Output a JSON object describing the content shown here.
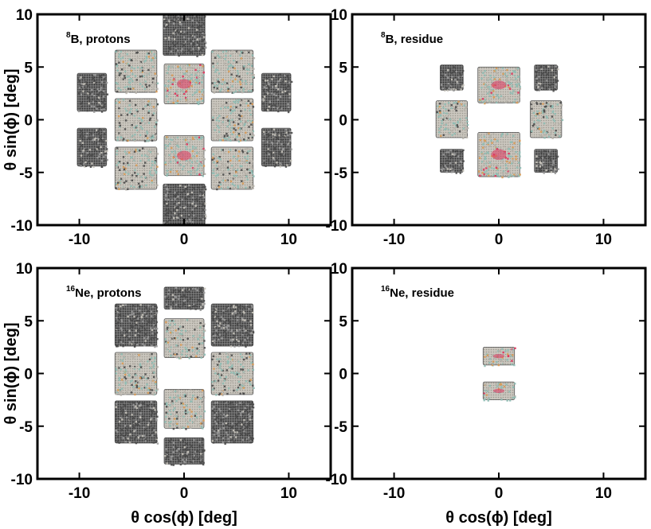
{
  "chart_data": [
    {
      "type": "heatmap",
      "panel": "top-left",
      "title_sup": "8",
      "title": "B, protons",
      "xlabel": "",
      "ylabel": "θ sin(ϕ) [deg]",
      "xlim": [
        -14,
        14
      ],
      "ylim": [
        -10,
        10
      ],
      "xticks": [
        -10,
        0,
        10
      ],
      "yticks": [
        -10,
        -5,
        0,
        5,
        10
      ],
      "xtick_labels": [
        "-10",
        "0",
        "10"
      ],
      "ytick_labels": [
        "-10",
        "-5",
        "0",
        "5",
        "10"
      ],
      "regions": [
        {
          "x": [
            -2.0,
            2.0
          ],
          "y": [
            6.1,
            10.0
          ],
          "intensity": "edge"
        },
        {
          "x": [
            -6.6,
            -2.6
          ],
          "y": [
            2.6,
            6.6
          ],
          "intensity": "mixed"
        },
        {
          "x": [
            -1.9,
            1.9
          ],
          "y": [
            1.5,
            5.3
          ],
          "intensity": "high"
        },
        {
          "x": [
            2.6,
            6.6
          ],
          "y": [
            2.6,
            6.6
          ],
          "intensity": "mixed"
        },
        {
          "x": [
            -10.2,
            -7.4
          ],
          "y": [
            0.8,
            4.4
          ],
          "intensity": "edge"
        },
        {
          "x": [
            -6.6,
            -2.6
          ],
          "y": [
            -2.0,
            2.0
          ],
          "intensity": "mixed"
        },
        {
          "x": [
            2.6,
            6.6
          ],
          "y": [
            -2.0,
            2.0
          ],
          "intensity": "mixed"
        },
        {
          "x": [
            7.4,
            10.2
          ],
          "y": [
            0.8,
            4.4
          ],
          "intensity": "edge"
        },
        {
          "x": [
            -10.2,
            -7.4
          ],
          "y": [
            -4.4,
            -0.8
          ],
          "intensity": "edge"
        },
        {
          "x": [
            7.4,
            10.2
          ],
          "y": [
            -4.4,
            -0.8
          ],
          "intensity": "edge"
        },
        {
          "x": [
            -1.9,
            1.9
          ],
          "y": [
            -5.3,
            -1.5
          ],
          "intensity": "high"
        },
        {
          "x": [
            -6.6,
            -2.6
          ],
          "y": [
            -6.6,
            -2.6
          ],
          "intensity": "mixed"
        },
        {
          "x": [
            2.6,
            6.6
          ],
          "y": [
            -6.6,
            -2.6
          ],
          "intensity": "mixed"
        },
        {
          "x": [
            -2.0,
            2.0
          ],
          "y": [
            -10.0,
            -6.1
          ],
          "intensity": "edge"
        }
      ]
    },
    {
      "type": "heatmap",
      "panel": "top-right",
      "title_sup": "8",
      "title": "B, residue",
      "xlabel": "",
      "ylabel": "",
      "xlim": [
        -14,
        14
      ],
      "ylim": [
        -10,
        10
      ],
      "xticks": [
        -10,
        0,
        10
      ],
      "yticks": [
        -10,
        -5,
        0,
        5,
        10
      ],
      "xtick_labels": [
        "-10",
        "0",
        "10"
      ],
      "ytick_labels": [
        "-10",
        "-5",
        "0",
        "5",
        "10"
      ],
      "regions": [
        {
          "x": [
            -5.6,
            -3.4
          ],
          "y": [
            2.8,
            5.2
          ],
          "intensity": "edge"
        },
        {
          "x": [
            3.4,
            5.6
          ],
          "y": [
            2.8,
            5.2
          ],
          "intensity": "edge"
        },
        {
          "x": [
            -2.0,
            2.0
          ],
          "y": [
            1.6,
            5.0
          ],
          "intensity": "high"
        },
        {
          "x": [
            -6.0,
            -3.0
          ],
          "y": [
            -1.7,
            1.8
          ],
          "intensity": "mixed"
        },
        {
          "x": [
            3.0,
            6.0
          ],
          "y": [
            -1.7,
            1.8
          ],
          "intensity": "mixed"
        },
        {
          "x": [
            -2.0,
            2.0
          ],
          "y": [
            -5.4,
            -1.2
          ],
          "intensity": "high"
        },
        {
          "x": [
            -5.6,
            -3.4
          ],
          "y": [
            -5.0,
            -2.8
          ],
          "intensity": "edge"
        },
        {
          "x": [
            3.4,
            5.6
          ],
          "y": [
            -5.0,
            -2.8
          ],
          "intensity": "edge"
        }
      ]
    },
    {
      "type": "heatmap",
      "panel": "bottom-left",
      "title_sup": "16",
      "title": "Ne, protons",
      "xlabel": "θ cos(ϕ) [deg]",
      "ylabel": "θ sin(ϕ) [deg]",
      "xlim": [
        -14,
        14
      ],
      "ylim": [
        -10,
        10
      ],
      "xticks": [
        -10,
        0,
        10
      ],
      "yticks": [
        -10,
        -5,
        0,
        5,
        10
      ],
      "xtick_labels": [
        "-10",
        "0",
        "10"
      ],
      "ytick_labels": [
        "-10",
        "-5",
        "0",
        "5",
        "10"
      ],
      "regions": [
        {
          "x": [
            -1.9,
            1.9
          ],
          "y": [
            6.1,
            8.2
          ],
          "intensity": "edge"
        },
        {
          "x": [
            -6.6,
            -2.6
          ],
          "y": [
            2.6,
            6.6
          ],
          "intensity": "edge"
        },
        {
          "x": [
            -1.9,
            1.9
          ],
          "y": [
            1.5,
            5.2
          ],
          "intensity": "mixed"
        },
        {
          "x": [
            2.6,
            6.6
          ],
          "y": [
            2.6,
            6.6
          ],
          "intensity": "edge"
        },
        {
          "x": [
            -6.6,
            -2.6
          ],
          "y": [
            -2.0,
            2.0
          ],
          "intensity": "mixed"
        },
        {
          "x": [
            2.6,
            6.6
          ],
          "y": [
            -2.0,
            2.0
          ],
          "intensity": "mixed"
        },
        {
          "x": [
            -1.9,
            1.9
          ],
          "y": [
            -5.2,
            -1.5
          ],
          "intensity": "mixed"
        },
        {
          "x": [
            -6.6,
            -2.6
          ],
          "y": [
            -6.6,
            -2.6
          ],
          "intensity": "edge"
        },
        {
          "x": [
            2.6,
            6.6
          ],
          "y": [
            -6.6,
            -2.6
          ],
          "intensity": "edge"
        },
        {
          "x": [
            -1.9,
            1.9
          ],
          "y": [
            -8.6,
            -6.1
          ],
          "intensity": "edge"
        }
      ]
    },
    {
      "type": "heatmap",
      "panel": "bottom-right",
      "title_sup": "16",
      "title": "Ne, residue",
      "xlabel": "θ cos(ϕ) [deg]",
      "ylabel": "",
      "xlim": [
        -14,
        14
      ],
      "ylim": [
        -10,
        10
      ],
      "xticks": [
        -10,
        0,
        10
      ],
      "yticks": [
        -10,
        -5,
        0,
        5,
        10
      ],
      "xtick_labels": [
        "-10",
        "0",
        "10"
      ],
      "ytick_labels": [
        "-10",
        "-5",
        "0",
        "5",
        "10"
      ],
      "regions": [
        {
          "x": [
            -1.5,
            1.5
          ],
          "y": [
            0.8,
            2.5
          ],
          "intensity": "high"
        },
        {
          "x": [
            -1.5,
            1.5
          ],
          "y": [
            -2.5,
            -0.8
          ],
          "intensity": "high"
        }
      ]
    }
  ],
  "colors": {
    "frame": "#000000",
    "background": "#ffffff",
    "fill_base": "#c9c5bd",
    "fill_edge": "#4a4a4a",
    "fill_teal": "#8fbcb4",
    "fill_hot": "#e0335c",
    "fill_orange": "#d99a55"
  }
}
